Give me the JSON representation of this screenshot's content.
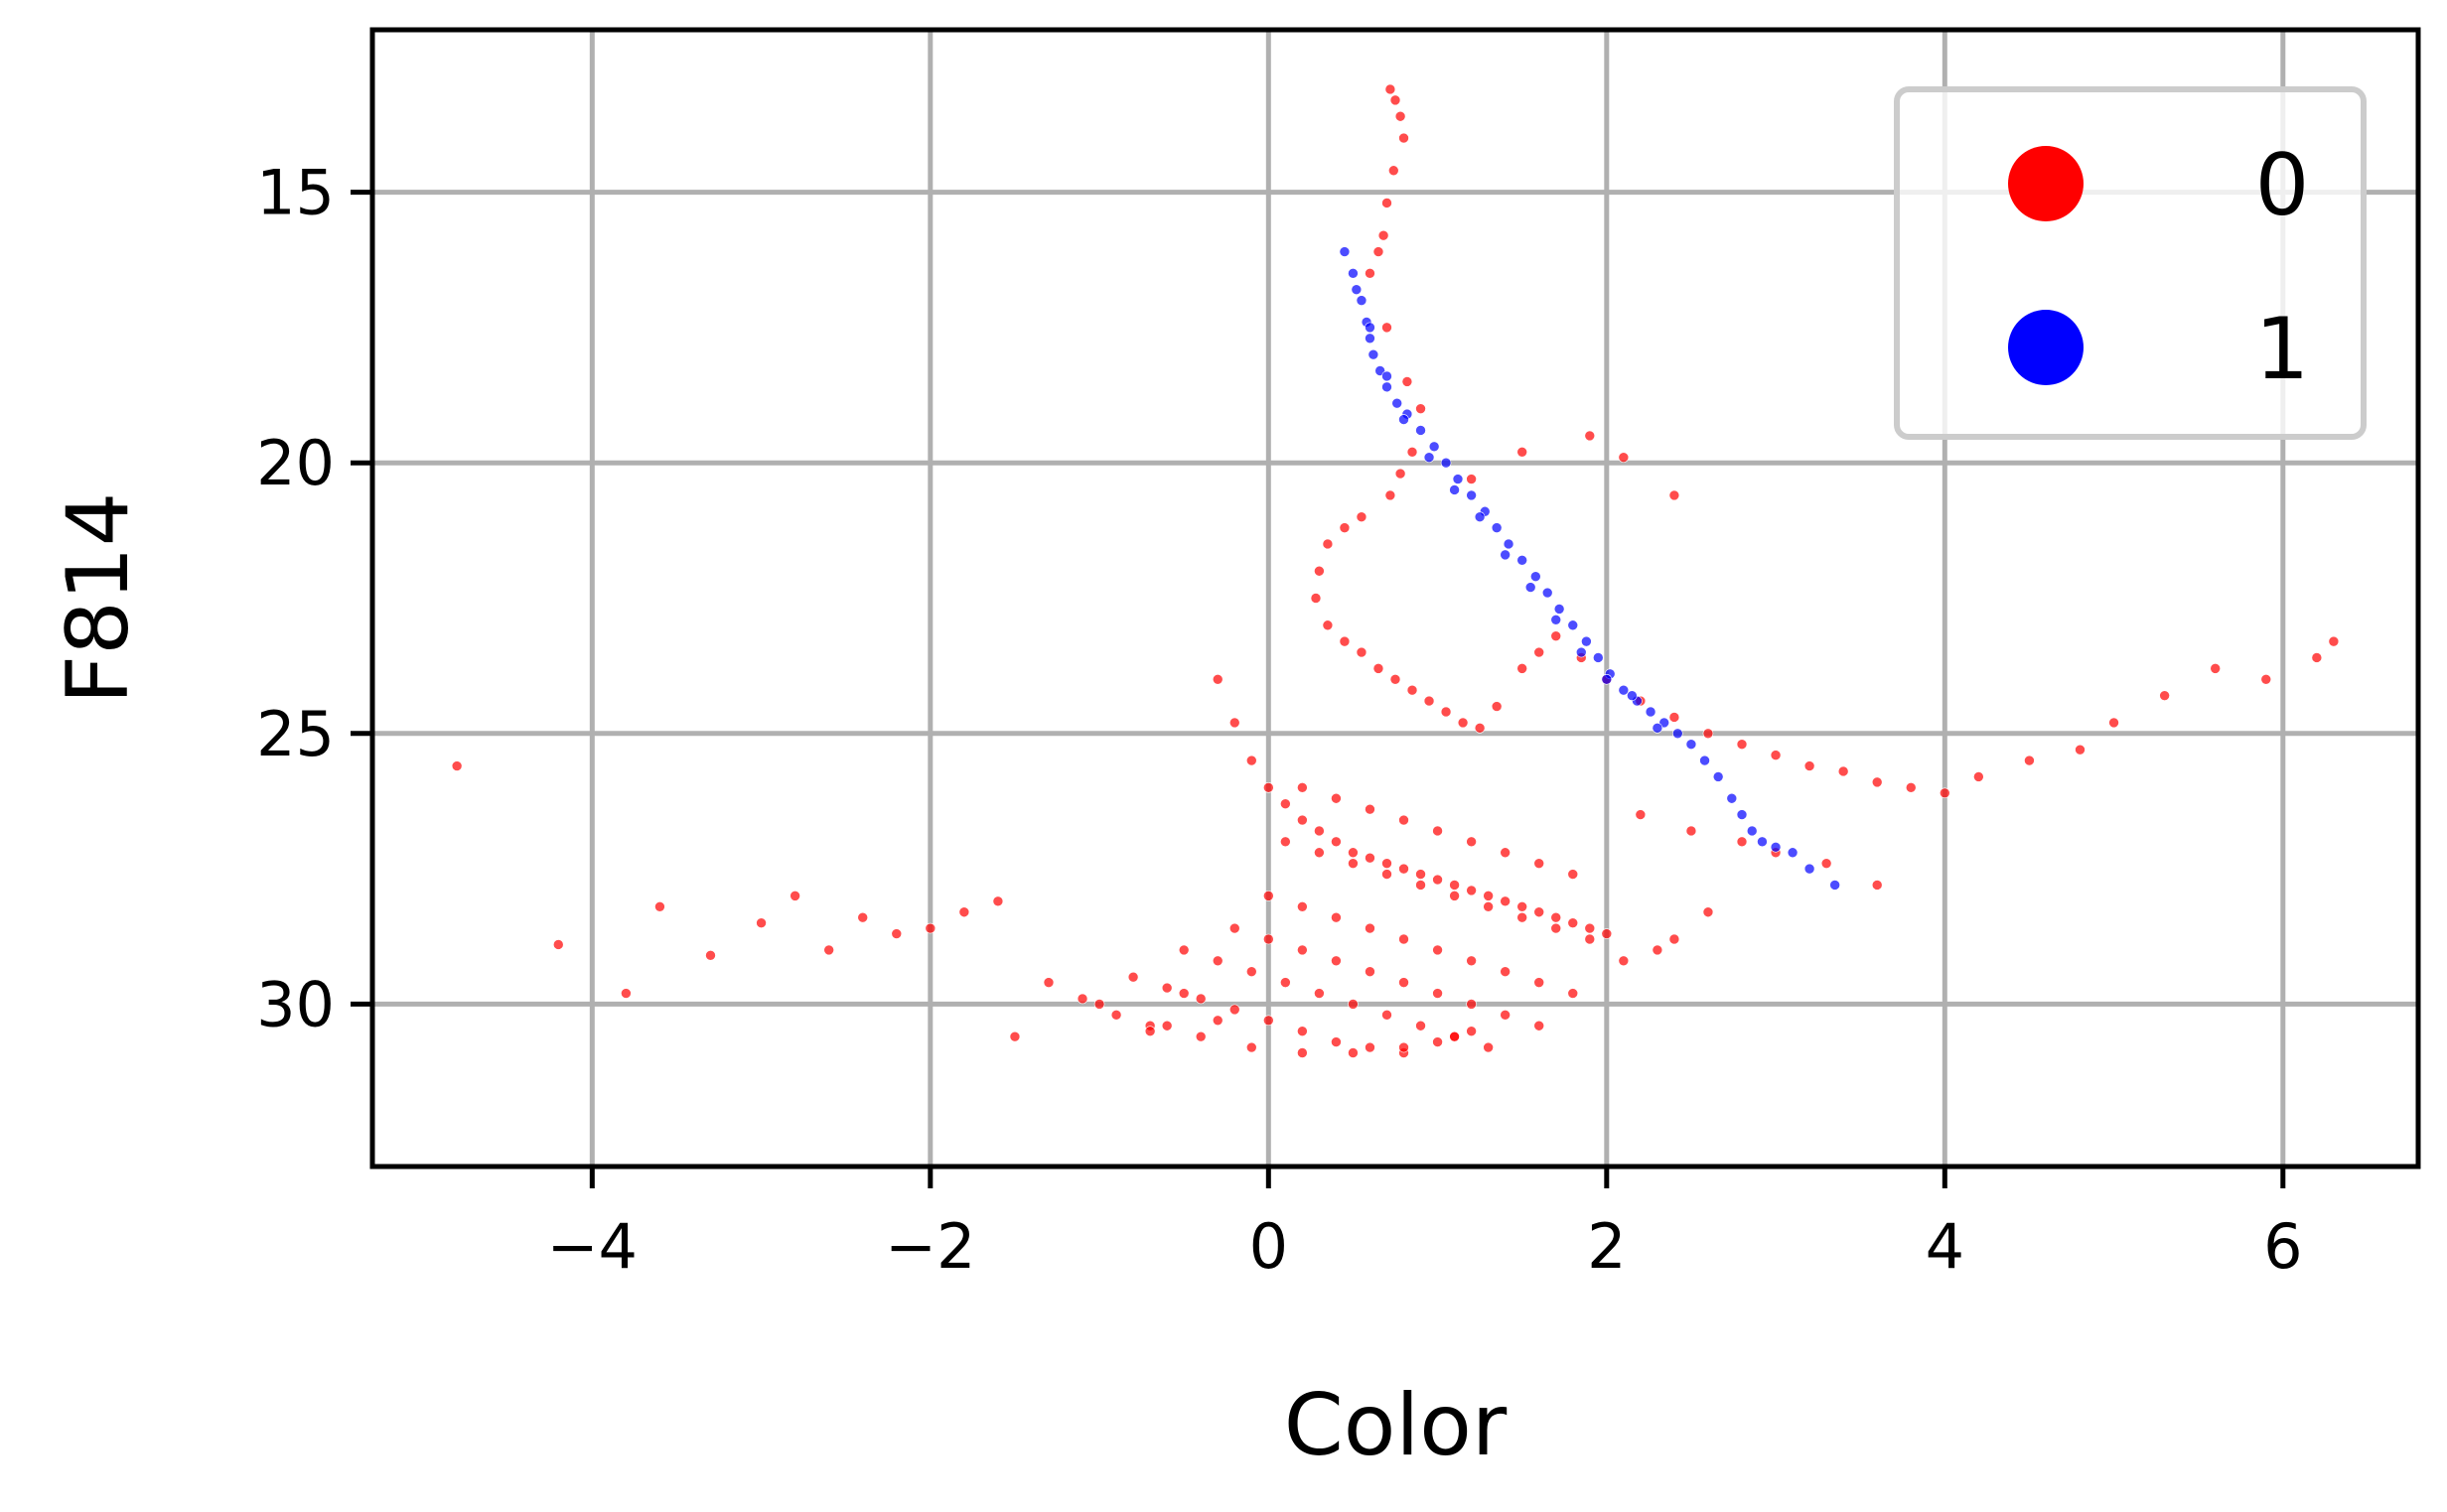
{
  "chart_data": {
    "type": "scatter",
    "title": "",
    "xlabel": "Color",
    "ylabel": "F814",
    "xlim": [
      -5.3,
      6.8
    ],
    "ylim": [
      33.0,
      12.0
    ],
    "y_inverted": true,
    "grid": true,
    "legend_placement": "top-right",
    "xticks": [
      -4,
      -2,
      0,
      2,
      4,
      6
    ],
    "xtick_labels": [
      "−4",
      "−2",
      "0",
      "2",
      "4",
      "6"
    ],
    "yticks": [
      15,
      20,
      25,
      30
    ],
    "ytick_labels": [
      "15",
      "20",
      "25",
      "30"
    ],
    "colors": {
      "0": "#ff0000",
      "1": "#0000ff",
      "grid": "#b0b0b0",
      "axes": "#000000"
    },
    "legend": [
      {
        "label": "0",
        "color": "#ff0000"
      },
      {
        "label": "1",
        "color": "#0000ff"
      }
    ],
    "series": [
      {
        "name": "0",
        "color": "#ff0000",
        "x": [
          0.72,
          0.75,
          0.78,
          0.8,
          0.74,
          0.7,
          0.68,
          0.65,
          0.6,
          0.7,
          0.82,
          0.9,
          0.85,
          0.78,
          0.72,
          0.55,
          0.45,
          0.35,
          0.3,
          0.28,
          0.35,
          0.45,
          0.55,
          0.65,
          0.75,
          0.85,
          0.95,
          1.05,
          1.15,
          1.25,
          1.35,
          1.5,
          1.6,
          1.7,
          1.85,
          2.0,
          2.2,
          2.4,
          2.6,
          2.8,
          3.0,
          3.2,
          3.4,
          3.6,
          3.8,
          4.0,
          4.2,
          4.5,
          4.8,
          5.0,
          5.3,
          5.6,
          5.9,
          6.2,
          6.3,
          -0.3,
          -0.2,
          -0.1,
          0.0,
          0.1,
          0.2,
          0.3,
          0.4,
          0.5,
          0.6,
          0.7,
          0.8,
          0.9,
          1.0,
          1.1,
          1.2,
          1.3,
          1.4,
          1.5,
          1.6,
          1.7,
          1.8,
          1.9,
          2.0,
          0.2,
          0.4,
          0.6,
          0.8,
          1.0,
          1.2,
          1.4,
          1.6,
          1.8,
          0.1,
          0.3,
          0.5,
          0.7,
          0.9,
          1.1,
          1.3,
          1.5,
          1.7,
          1.9,
          0.0,
          0.2,
          0.4,
          0.6,
          0.8,
          1.0,
          1.2,
          1.4,
          1.6,
          1.8,
          -0.2,
          0.0,
          0.2,
          0.4,
          0.6,
          0.8,
          1.0,
          1.2,
          1.4,
          1.6,
          -0.5,
          -0.3,
          -0.1,
          0.1,
          0.3,
          0.5,
          0.7,
          0.9,
          1.1,
          1.3,
          -0.8,
          -0.6,
          -0.4,
          -0.2,
          0.0,
          0.2,
          0.4,
          0.6,
          0.8,
          1.0,
          1.2,
          -1.0,
          -0.7,
          -0.4,
          -0.1,
          0.2,
          0.5,
          0.8,
          1.1,
          -4.8,
          -4.2,
          -3.8,
          -3.6,
          -3.3,
          -3.0,
          -2.8,
          -2.6,
          -2.4,
          -2.2,
          -2.0,
          -1.8,
          -1.6,
          -1.5,
          -1.3,
          -1.1,
          -0.9,
          -0.7,
          -0.6,
          -0.5,
          -0.3,
          2.2,
          2.5,
          2.8,
          3.0,
          3.3,
          3.6,
          2.6,
          2.4,
          2.1,
          2.3,
          1.5,
          1.2,
          1.9,
          2.1,
          2.4
        ],
        "y": [
          13.1,
          13.3,
          13.6,
          14.0,
          14.6,
          15.2,
          15.8,
          16.1,
          16.5,
          17.5,
          18.5,
          19.0,
          19.8,
          20.2,
          20.6,
          21.0,
          21.2,
          21.5,
          22.0,
          22.5,
          23.0,
          23.3,
          23.5,
          23.8,
          24.0,
          24.2,
          24.4,
          24.6,
          24.8,
          24.9,
          24.5,
          23.8,
          23.5,
          23.2,
          23.6,
          24.0,
          24.4,
          24.7,
          25.0,
          25.2,
          25.4,
          25.6,
          25.7,
          25.9,
          26.0,
          26.1,
          25.8,
          25.5,
          25.3,
          24.8,
          24.3,
          23.8,
          24.0,
          23.6,
          23.3,
          24.0,
          24.8,
          25.5,
          26.0,
          26.3,
          26.6,
          26.8,
          27.0,
          27.2,
          27.3,
          27.4,
          27.5,
          27.6,
          27.7,
          27.8,
          27.9,
          28.0,
          28.1,
          28.2,
          28.3,
          28.4,
          28.5,
          28.6,
          28.7,
          26.0,
          26.2,
          26.4,
          26.6,
          26.8,
          27.0,
          27.2,
          27.4,
          27.6,
          27.0,
          27.2,
          27.4,
          27.6,
          27.8,
          28.0,
          28.2,
          28.4,
          28.6,
          28.8,
          28.0,
          28.2,
          28.4,
          28.6,
          28.8,
          29.0,
          29.2,
          29.4,
          29.6,
          29.8,
          28.6,
          28.8,
          29.0,
          29.2,
          29.4,
          29.6,
          29.8,
          30.0,
          30.2,
          30.4,
          29.0,
          29.2,
          29.4,
          29.6,
          29.8,
          30.0,
          30.2,
          30.4,
          30.6,
          30.8,
          29.5,
          29.7,
          29.9,
          30.1,
          30.3,
          30.5,
          30.7,
          30.8,
          30.9,
          30.7,
          30.5,
          30.0,
          30.4,
          30.6,
          30.8,
          30.9,
          30.9,
          30.8,
          30.6,
          25.6,
          28.9,
          29.8,
          28.2,
          29.1,
          28.5,
          28.0,
          29.0,
          28.4,
          28.7,
          28.6,
          28.3,
          28.1,
          30.6,
          29.6,
          29.9,
          30.2,
          30.5,
          30.4,
          29.8,
          30.3,
          26.5,
          26.8,
          27.0,
          27.2,
          27.4,
          27.8,
          28.3,
          28.8,
          29.2,
          29.0,
          19.8,
          20.3,
          19.5,
          19.9,
          20.6
        ]
      },
      {
        "name": "1",
        "color": "#0000ff",
        "x": [
          0.45,
          0.5,
          0.55,
          0.58,
          0.6,
          0.62,
          0.66,
          0.7,
          0.76,
          0.82,
          0.9,
          0.98,
          1.05,
          1.12,
          1.2,
          1.28,
          1.35,
          1.42,
          1.5,
          1.58,
          1.65,
          1.72,
          1.8,
          1.88,
          1.95,
          2.02,
          2.1,
          2.18,
          2.26,
          2.34,
          2.42,
          2.5,
          2.58,
          2.66,
          2.74,
          2.8,
          2.86,
          2.92,
          3.0,
          3.1,
          3.2,
          3.35,
          0.52,
          0.6,
          0.7,
          0.8,
          0.95,
          1.1,
          1.25,
          1.4,
          1.55,
          1.7,
          1.85,
          2.0,
          2.15,
          2.3
        ],
        "y": [
          16.1,
          16.5,
          17.0,
          17.4,
          17.7,
          18.0,
          18.3,
          18.6,
          18.9,
          19.1,
          19.4,
          19.7,
          20.0,
          20.3,
          20.6,
          20.9,
          21.2,
          21.5,
          21.8,
          22.1,
          22.4,
          22.7,
          23.0,
          23.3,
          23.6,
          23.9,
          24.2,
          24.4,
          24.6,
          24.8,
          25.0,
          25.2,
          25.5,
          25.8,
          26.2,
          26.5,
          26.8,
          27.0,
          27.1,
          27.2,
          27.5,
          27.8,
          16.8,
          17.5,
          18.4,
          19.2,
          19.9,
          20.5,
          21.0,
          21.7,
          22.3,
          22.9,
          23.5,
          24.0,
          24.3,
          24.9
        ]
      }
    ]
  }
}
